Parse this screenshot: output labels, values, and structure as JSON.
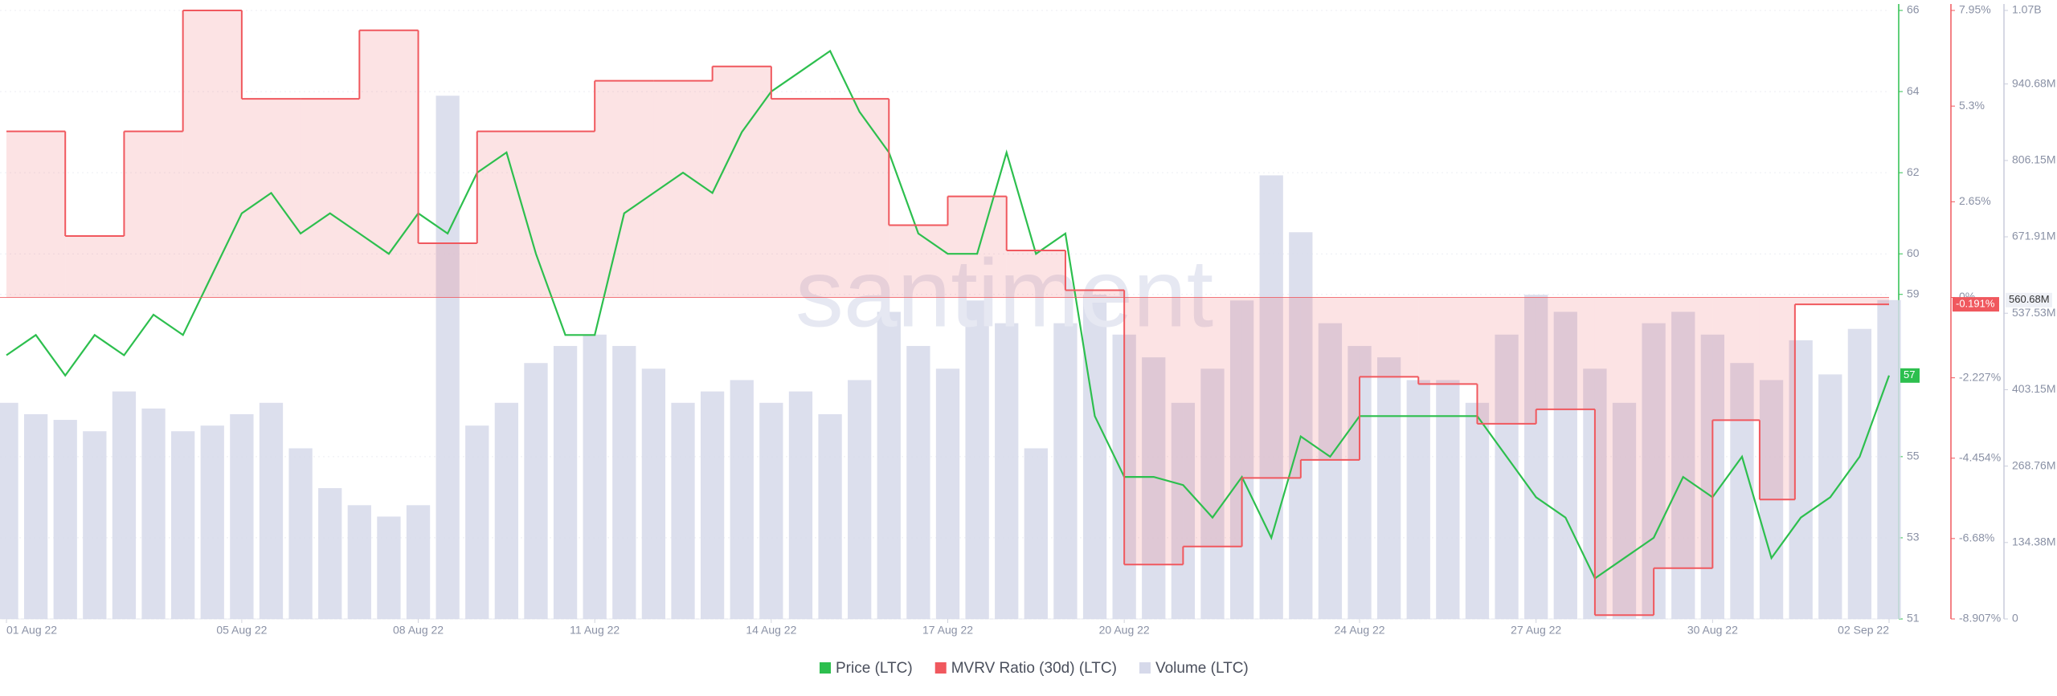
{
  "chart_data": {
    "type": "combo",
    "watermark": "santiment",
    "grid": true,
    "xlim": [
      0,
      32
    ],
    "xticks": [
      {
        "value": 0,
        "label": "01 Aug 22"
      },
      {
        "value": 4,
        "label": "05 Aug 22"
      },
      {
        "value": 7,
        "label": "08 Aug 22"
      },
      {
        "value": 10,
        "label": "11 Aug 22"
      },
      {
        "value": 13,
        "label": "14 Aug 22"
      },
      {
        "value": 16,
        "label": "17 Aug 22"
      },
      {
        "value": 19,
        "label": "20 Aug 22"
      },
      {
        "value": 23,
        "label": "24 Aug 22"
      },
      {
        "value": 26,
        "label": "27 Aug 22"
      },
      {
        "value": 29,
        "label": "30 Aug 22"
      },
      {
        "value": 32,
        "label": "02 Sep 22"
      }
    ],
    "x": [
      0,
      0.5,
      1,
      1.5,
      2,
      2.5,
      3,
      3.5,
      4,
      4.5,
      5,
      5.5,
      6,
      6.5,
      7,
      7.5,
      8,
      8.5,
      9,
      9.5,
      10,
      10.5,
      11,
      11.5,
      12,
      12.5,
      13,
      13.5,
      14,
      14.5,
      15,
      15.5,
      16,
      16.5,
      17,
      17.5,
      18,
      18.5,
      19,
      19.5,
      20,
      20.5,
      21,
      21.5,
      22,
      22.5,
      23,
      23.5,
      24,
      24.5,
      25,
      25.5,
      26,
      26.5,
      27,
      27.5,
      28,
      28.5,
      29,
      29.5,
      30,
      30.5,
      31,
      31.5,
      32
    ],
    "ylim": [
      51,
      66
    ],
    "yticks": [
      51,
      53,
      55,
      59,
      60,
      62,
      64,
      66
    ],
    "y2lim": [
      -8.907,
      7.95
    ],
    "y2ticks": [
      {
        "value": -8.907,
        "label": "-8.907%"
      },
      {
        "value": -6.68,
        "label": "-6.68%"
      },
      {
        "value": -4.454,
        "label": "-4.454%"
      },
      {
        "value": -2.227,
        "label": "-2.227%"
      },
      {
        "value": 0,
        "label": "0%"
      },
      {
        "value": 2.65,
        "label": "2.65%"
      },
      {
        "value": 5.3,
        "label": "5.3%"
      },
      {
        "value": 7.95,
        "label": "7.95%"
      }
    ],
    "y3lim": [
      0,
      1070000000
    ],
    "y3ticks": [
      0,
      {
        "value": 134380000,
        "label": "134.38M"
      },
      {
        "value": 268760000,
        "label": "268.76M"
      },
      {
        "value": 403150000,
        "label": "403.15M"
      },
      {
        "value": 537530000,
        "label": "537.53M"
      },
      {
        "value": 671910000,
        "label": "671.91M"
      },
      {
        "value": 806150000,
        "label": "806.15M"
      },
      {
        "value": 940680000,
        "label": "940.68M"
      },
      {
        "value": 1070000000,
        "label": "1.07B"
      }
    ],
    "series": [
      {
        "name": "Price (LTC)",
        "kind": "line",
        "axis": "y",
        "color": "#2dbf4e",
        "current_label": "57",
        "values": [
          57.5,
          58,
          57,
          58,
          57.5,
          58.5,
          58,
          59.5,
          61,
          61.5,
          60.5,
          61,
          60.5,
          60,
          61,
          60.5,
          62,
          62.5,
          60,
          58,
          58,
          61,
          61.5,
          62,
          61.5,
          63,
          64,
          64.5,
          65,
          63.5,
          62.5,
          60.5,
          60,
          60,
          62.5,
          60,
          60.5,
          56,
          54.5,
          54.5,
          54.3,
          53.5,
          54.5,
          53,
          55.5,
          55,
          56,
          56,
          56,
          56,
          56,
          55,
          54,
          53.5,
          52,
          52.5,
          53,
          54.5,
          54,
          55,
          52.5,
          53.5,
          54,
          55,
          57
        ]
      },
      {
        "name": "MVRV Ratio (30d) (LTC)",
        "kind": "step",
        "axis": "y2",
        "color": "#f0585e",
        "current_label": "-0.191%",
        "x": [
          0,
          1,
          2,
          3,
          4,
          5,
          6,
          7,
          8,
          9,
          10,
          11,
          12,
          13,
          14,
          15,
          16,
          17,
          18,
          19,
          20,
          21,
          22,
          23,
          24,
          25,
          26,
          27,
          28,
          29,
          29.8,
          30.4
        ],
        "values": [
          4.6,
          1.7,
          4.6,
          7.95,
          5.5,
          5.5,
          7.4,
          1.5,
          4.6,
          4.6,
          6.0,
          6.0,
          6.4,
          5.5,
          5.5,
          2.0,
          2.8,
          1.3,
          0.2,
          -7.4,
          -6.9,
          -5.0,
          -4.5,
          -2.2,
          -2.4,
          -3.5,
          -3.1,
          -8.8,
          -7.5,
          -3.4,
          -5.6,
          -0.191
        ]
      },
      {
        "name": "Volume (LTC)",
        "kind": "bar",
        "axis": "y3",
        "color": "#d6d9ea",
        "current_label": "560.68M",
        "values": [
          380000000,
          360000000,
          350000000,
          330000000,
          400000000,
          370000000,
          330000000,
          340000000,
          360000000,
          380000000,
          300000000,
          230000000,
          200000000,
          180000000,
          200000000,
          920000000,
          340000000,
          380000000,
          450000000,
          480000000,
          500000000,
          480000000,
          440000000,
          380000000,
          400000000,
          420000000,
          380000000,
          400000000,
          360000000,
          420000000,
          540000000,
          480000000,
          440000000,
          560000000,
          520000000,
          300000000,
          520000000,
          570000000,
          500000000,
          460000000,
          380000000,
          440000000,
          560000000,
          780000000,
          680000000,
          520000000,
          480000000,
          460000000,
          420000000,
          420000000,
          380000000,
          500000000,
          570000000,
          540000000,
          440000000,
          380000000,
          520000000,
          540000000,
          500000000,
          450000000,
          420000000,
          490000000,
          430000000,
          510000000,
          560680000
        ]
      }
    ]
  }
}
